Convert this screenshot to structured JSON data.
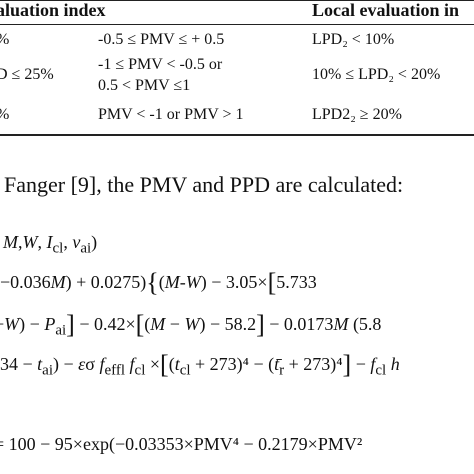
{
  "table": {
    "header": {
      "col1": "aluation index",
      "col2": "Local evaluation in"
    },
    "rows": [
      {
        "c0": "%",
        "c1": "-0.5 ≤ PMV ≤ + 0.5",
        "c1b": "",
        "c2": "LPD₂ < 10%"
      },
      {
        "c0": "D ≤ 25%",
        "c1": "-1 ≤ PMV < -0.5 or",
        "c1b": "0.5 < PMV ≤1",
        "c2": "10% ≤ LPD₂ < 20%"
      },
      {
        "c0": "%",
        "c1": "PMV < -1 or PMV > 1",
        "c1b": "",
        "c2": "LPD2₂ ≥ 20%"
      }
    ]
  },
  "paragraph": "Fanger [9], the PMV and PPD are calculated:",
  "equations": {
    "line1": ", M,W, I_cl, v_ai)",
    "line2": "(−0.036M) + 0.0275){(M-W) − 3.05×[5.733",
    "line3": "−W) − P_ai] − 0.42×[(M − W) − 58.2] − 0.0173M (5.8",
    "line4": "(34 − t_ai) − εσ f_effl f_cl ×[(t_cl + 273)⁴ − (t̄_r + 273)⁴] − f_cl h",
    "line5": "= 100 − 95×exp(−0.03353×PMV⁴ − 0.2179×PMV²"
  }
}
